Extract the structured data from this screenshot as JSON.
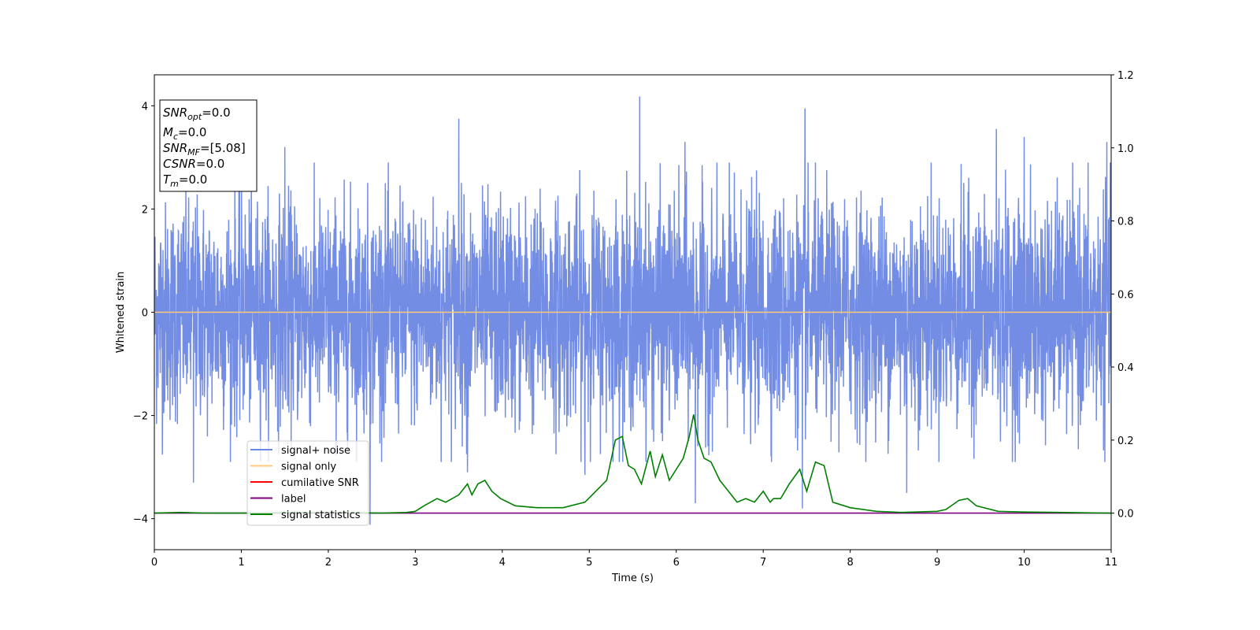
{
  "chart_data": {
    "type": "line",
    "xlabel": "Time (s)",
    "ylabel": "Whitened strain",
    "xlim": [
      0,
      11
    ],
    "ylim_left": [
      -4.6,
      4.6
    ],
    "ylim_right": [
      -0.1,
      1.2
    ],
    "x_ticks": [
      "0",
      "1",
      "2",
      "3",
      "4",
      "5",
      "6",
      "7",
      "8",
      "9",
      "10",
      "11"
    ],
    "y_ticks_left": [
      "−4",
      "−2",
      "0",
      "2",
      "4"
    ],
    "y_ticks_right": [
      "0.0",
      "0.2",
      "0.4",
      "0.6",
      "0.8",
      "1.0",
      "1.2"
    ],
    "info_box": [
      {
        "name": "SNR",
        "sub": "opt",
        "value": "=0.0"
      },
      {
        "name": "M",
        "sub": "c",
        "value": "=0.0"
      },
      {
        "name": "SNR",
        "sub": "MF",
        "value": "=[5.08]"
      },
      {
        "name": "CSNR",
        "sub": "",
        "value": "=0.0"
      },
      {
        "name": "T",
        "sub": "m",
        "value": "=0.0"
      }
    ],
    "legend": [
      {
        "label": "signal+ noise",
        "color": "#6b87e3"
      },
      {
        "label": "signal only",
        "color": "#ffc97a"
      },
      {
        "label": "cumilative SNR",
        "color": "#ff0000"
      },
      {
        "label": "label",
        "color": "#800080"
      },
      {
        "label": "signal statistics",
        "color": "#008000"
      }
    ],
    "legend_position": "lower-left",
    "series": [
      {
        "name": "signal+ noise",
        "axis": "left",
        "color": "#6b87e3",
        "style": "dense noise, roughly Gaussian around 0, band about -2.5 to 2.5",
        "spikes": [
          {
            "x": 1.5,
            "y": 3.2
          },
          {
            "x": 3.5,
            "y": 3.75
          },
          {
            "x": 3.6,
            "y": -3.1
          },
          {
            "x": 5.58,
            "y": 4.18
          },
          {
            "x": 6.1,
            "y": 3.3
          },
          {
            "x": 6.22,
            "y": -3.7
          },
          {
            "x": 7.48,
            "y": 3.95
          },
          {
            "x": 7.45,
            "y": -3.8
          },
          {
            "x": 2.48,
            "y": -4.12
          },
          {
            "x": 10.0,
            "y": 3.4
          },
          {
            "x": 9.68,
            "y": 3.55
          },
          {
            "x": 8.65,
            "y": -3.5
          },
          {
            "x": 0.45,
            "y": -3.3
          },
          {
            "x": 4.95,
            "y": -3.15
          },
          {
            "x": 10.95,
            "y": 3.3
          }
        ]
      },
      {
        "name": "signal only",
        "axis": "left",
        "color": "#ffc97a",
        "x": [
          0,
          11
        ],
        "y": [
          0,
          0
        ]
      },
      {
        "name": "label",
        "axis": "right",
        "color": "#800080",
        "x": [
          0,
          11
        ],
        "y": [
          0,
          0
        ]
      },
      {
        "name": "signal statistics",
        "axis": "right",
        "color": "#008000",
        "x": [
          0,
          0.3,
          0.6,
          1.0,
          2.0,
          2.6,
          2.9,
          3.0,
          3.1,
          3.25,
          3.35,
          3.5,
          3.6,
          3.65,
          3.72,
          3.8,
          3.88,
          3.98,
          4.15,
          4.4,
          4.7,
          4.95,
          5.2,
          5.3,
          5.38,
          5.45,
          5.52,
          5.6,
          5.7,
          5.76,
          5.84,
          5.92,
          6.0,
          6.08,
          6.15,
          6.2,
          6.25,
          6.32,
          6.4,
          6.5,
          6.6,
          6.7,
          6.8,
          6.9,
          7.0,
          7.08,
          7.12,
          7.2,
          7.3,
          7.42,
          7.5,
          7.6,
          7.7,
          7.8,
          8.0,
          8.3,
          8.6,
          9.0,
          9.1,
          9.25,
          9.35,
          9.45,
          9.7,
          10.0,
          10.4,
          11.0
        ],
        "y": [
          0.0,
          0.002,
          0.0,
          0.0,
          0.002,
          0.0,
          0.002,
          0.005,
          0.02,
          0.04,
          0.03,
          0.05,
          0.08,
          0.05,
          0.08,
          0.09,
          0.06,
          0.04,
          0.02,
          0.015,
          0.015,
          0.03,
          0.09,
          0.2,
          0.21,
          0.13,
          0.12,
          0.08,
          0.17,
          0.1,
          0.16,
          0.09,
          0.12,
          0.15,
          0.21,
          0.27,
          0.2,
          0.15,
          0.14,
          0.09,
          0.06,
          0.03,
          0.04,
          0.03,
          0.06,
          0.03,
          0.04,
          0.04,
          0.08,
          0.12,
          0.06,
          0.14,
          0.13,
          0.03,
          0.015,
          0.005,
          0.002,
          0.005,
          0.01,
          0.035,
          0.04,
          0.02,
          0.005,
          0.003,
          0.002,
          0.0
        ]
      }
    ]
  }
}
